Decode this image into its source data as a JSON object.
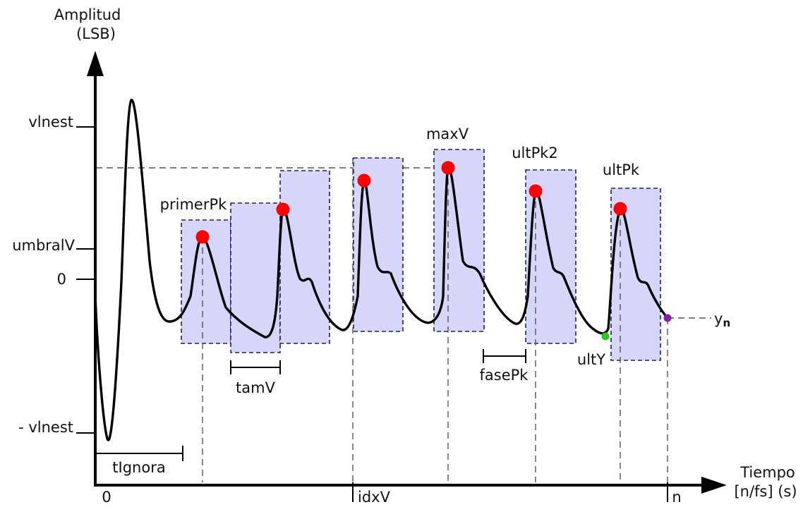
{
  "y_axis": {
    "title_line1": "Amplitud",
    "title_line2": "(LSB)"
  },
  "x_axis": {
    "title_line1": "Tiempo",
    "title_line2": "[n/fs] (s)"
  },
  "y_ticks": {
    "vlnest": "vlnest",
    "umbralv": "umbralV",
    "zero": "0",
    "neg_vlnest": "- vlnest"
  },
  "x_ticks": {
    "zero": "0",
    "idxv": "idxV",
    "n": "n"
  },
  "labels": {
    "primer_pk": "primerPk",
    "max_v": "maxV",
    "ult_pk2": "ultPk2",
    "ult_pk": "ultPk",
    "ult_y": "ultY",
    "y_n": "y",
    "y_n_sub": "n",
    "tam_v": "tamV",
    "fase_pk": "fasePk",
    "t_ignora": "tIgnora"
  },
  "colors": {
    "peak_marker": "#ff0000",
    "window_fill": "#d6d6fa",
    "window_border": "#1e1e66",
    "ult_y_marker": "#22cc22",
    "y_n_marker": "#8a1aa8"
  }
}
